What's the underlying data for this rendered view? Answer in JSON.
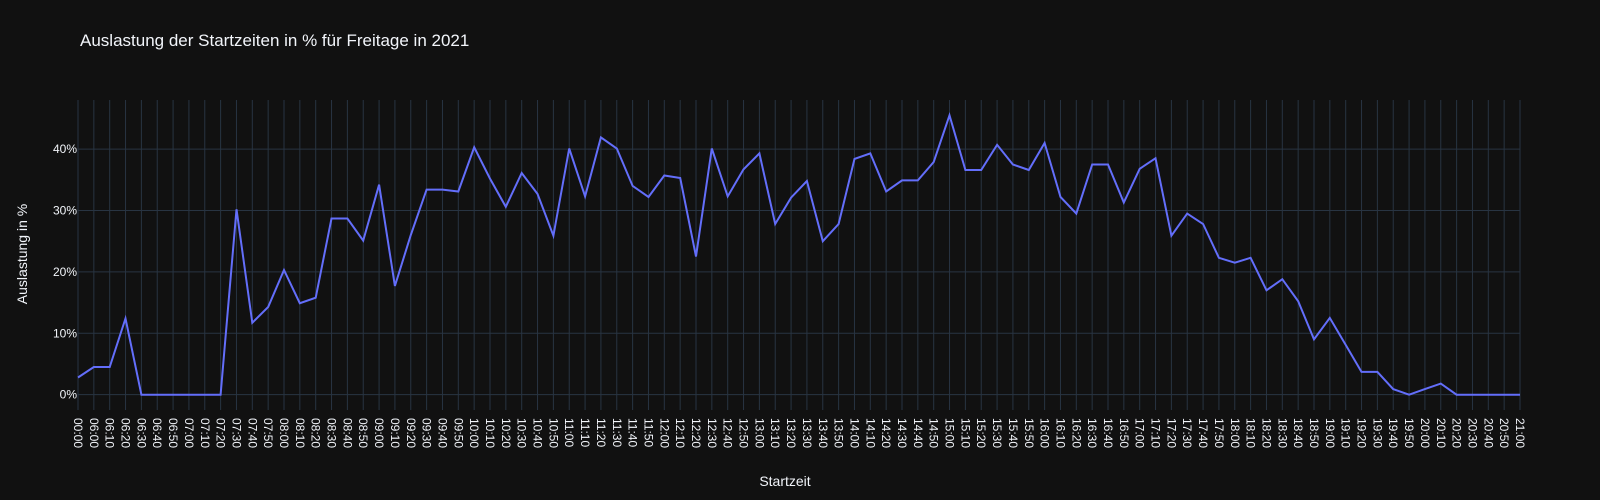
{
  "chart_data": {
    "type": "line",
    "title": "Auslastung der Startzeiten in % für Freitage in 2021",
    "xlabel": "Startzeit",
    "ylabel": "Auslastung in %",
    "y_tick_labels": [
      "0%",
      "10%",
      "20%",
      "30%",
      "40%"
    ],
    "y_ticks": [
      0,
      10,
      20,
      30,
      40
    ],
    "ylim": [
      -2.5,
      48
    ],
    "grid": true,
    "colors": {
      "background": "#111111",
      "grid": "#283442",
      "line": "#636efa",
      "text": "#f2f5fa"
    },
    "series": [
      {
        "x": [
          "00:00",
          "06:00",
          "06:10",
          "06:20",
          "06:30",
          "06:40",
          "06:50",
          "07:00",
          "07:10",
          "07:20",
          "07:30",
          "07:40",
          "07:50",
          "08:00",
          "08:10",
          "08:20",
          "08:30",
          "08:40",
          "08:50",
          "09:00",
          "09:10",
          "09:20",
          "09:30",
          "09:40",
          "09:50",
          "10:00",
          "10:10",
          "10:20",
          "10:30",
          "10:40",
          "10:50",
          "11:00",
          "11:10",
          "11:20",
          "11:30",
          "11:40",
          "11:50",
          "12:00",
          "12:10",
          "12:20",
          "12:30",
          "12:40",
          "12:50",
          "13:00",
          "13:10",
          "13:20",
          "13:30",
          "13:40",
          "13:50",
          "14:00",
          "14:10",
          "14:20",
          "14:30",
          "14:40",
          "14:50",
          "15:00",
          "15:10",
          "15:20",
          "15:30",
          "15:40",
          "15:50",
          "16:00",
          "16:10",
          "16:20",
          "16:30",
          "16:40",
          "16:50",
          "17:00",
          "17:10",
          "17:20",
          "17:30",
          "17:40",
          "17:50",
          "18:00",
          "18:10",
          "18:20",
          "18:30",
          "18:40",
          "18:50",
          "19:00",
          "19:10",
          "19:20",
          "19:30",
          "19:40",
          "19:50",
          "20:00",
          "20:10",
          "20:20",
          "20:30",
          "20:40",
          "20:50",
          "21:00"
        ],
        "values": [
          2.8,
          4.5,
          4.5,
          12.4,
          0,
          0,
          0,
          0,
          0,
          0,
          30.2,
          11.7,
          14.3,
          20.3,
          14.9,
          15.8,
          28.7,
          28.7,
          25.1,
          34.2,
          17.7,
          26.0,
          33.4,
          33.4,
          33.1,
          40.3,
          35.2,
          30.6,
          36.1,
          32.7,
          25.9,
          40.1,
          32.3,
          41.9,
          40.1,
          34.0,
          32.2,
          35.7,
          35.3,
          22.5,
          40.1,
          32.3,
          36.7,
          39.3,
          27.8,
          32.1,
          34.8,
          25.0,
          27.8,
          38.4,
          39.3,
          33.1,
          34.9,
          34.9,
          37.9,
          45.5,
          36.6,
          36.6,
          40.7,
          37.5,
          36.6,
          41.0,
          32.2,
          29.5,
          37.5,
          37.5,
          31.3,
          36.8,
          38.5,
          25.9,
          29.5,
          27.8,
          22.3,
          21.5,
          22.3,
          17.0,
          18.8,
          15.2,
          9.0,
          12.5,
          8.1,
          3.7,
          3.7,
          0.9,
          0,
          0.9,
          1.8,
          0,
          0,
          0,
          0,
          0
        ]
      }
    ]
  }
}
